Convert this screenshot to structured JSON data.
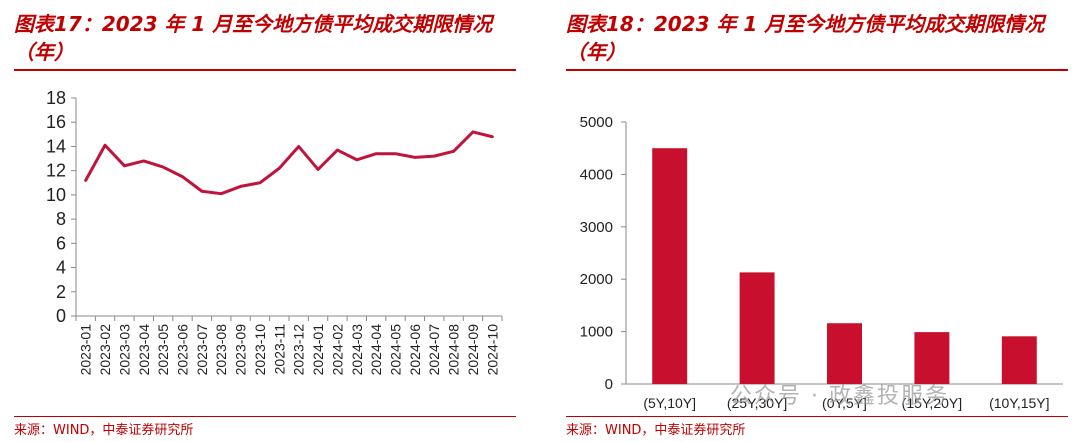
{
  "left": {
    "title": "图表17：2023 年 1 月至今地方债平均成交期限情况（年）",
    "source": "来源：WIND，中泰证券研究所",
    "chart_data": {
      "type": "line",
      "x": [
        "2023-01",
        "2023-02",
        "2023-03",
        "2023-04",
        "2023-05",
        "2023-06",
        "2023-07",
        "2023-08",
        "2023-09",
        "2023-10",
        "2023-11",
        "2023-12",
        "2024-01",
        "2024-02",
        "2024-03",
        "2024-04",
        "2024-05",
        "2024-06",
        "2024-07",
        "2024-08",
        "2024-09",
        "2024-10"
      ],
      "values": [
        11.2,
        14.1,
        12.4,
        12.8,
        12.3,
        11.5,
        10.3,
        10.1,
        10.7,
        11.0,
        12.2,
        14.0,
        12.1,
        13.7,
        12.9,
        13.4,
        13.4,
        13.1,
        13.2,
        13.6,
        15.2,
        14.8
      ],
      "yticks": [
        0,
        2,
        4,
        6,
        8,
        10,
        12,
        14,
        16,
        18
      ],
      "ylim": [
        0,
        18
      ],
      "color": "#c0143c",
      "grid": false
    }
  },
  "right": {
    "title": "图表18：2023 年 1 月至今地方债平均成交期限情况（年）",
    "source": "来源：WIND，中泰证券研究所",
    "chart_data": {
      "type": "bar",
      "categories": [
        "(5Y,10Y]",
        "(25Y,30Y]",
        "(0Y,5Y]",
        "(15Y,20Y]",
        "(10Y,15Y]"
      ],
      "values": [
        4500,
        2130,
        1160,
        990,
        910
      ],
      "yticks": [
        0,
        1000,
        2000,
        3000,
        4000,
        5000
      ],
      "ylim": [
        0,
        5000
      ],
      "color": "#c8102e",
      "grid": false
    }
  },
  "watermark": "公众号 · 政鑫投服务"
}
